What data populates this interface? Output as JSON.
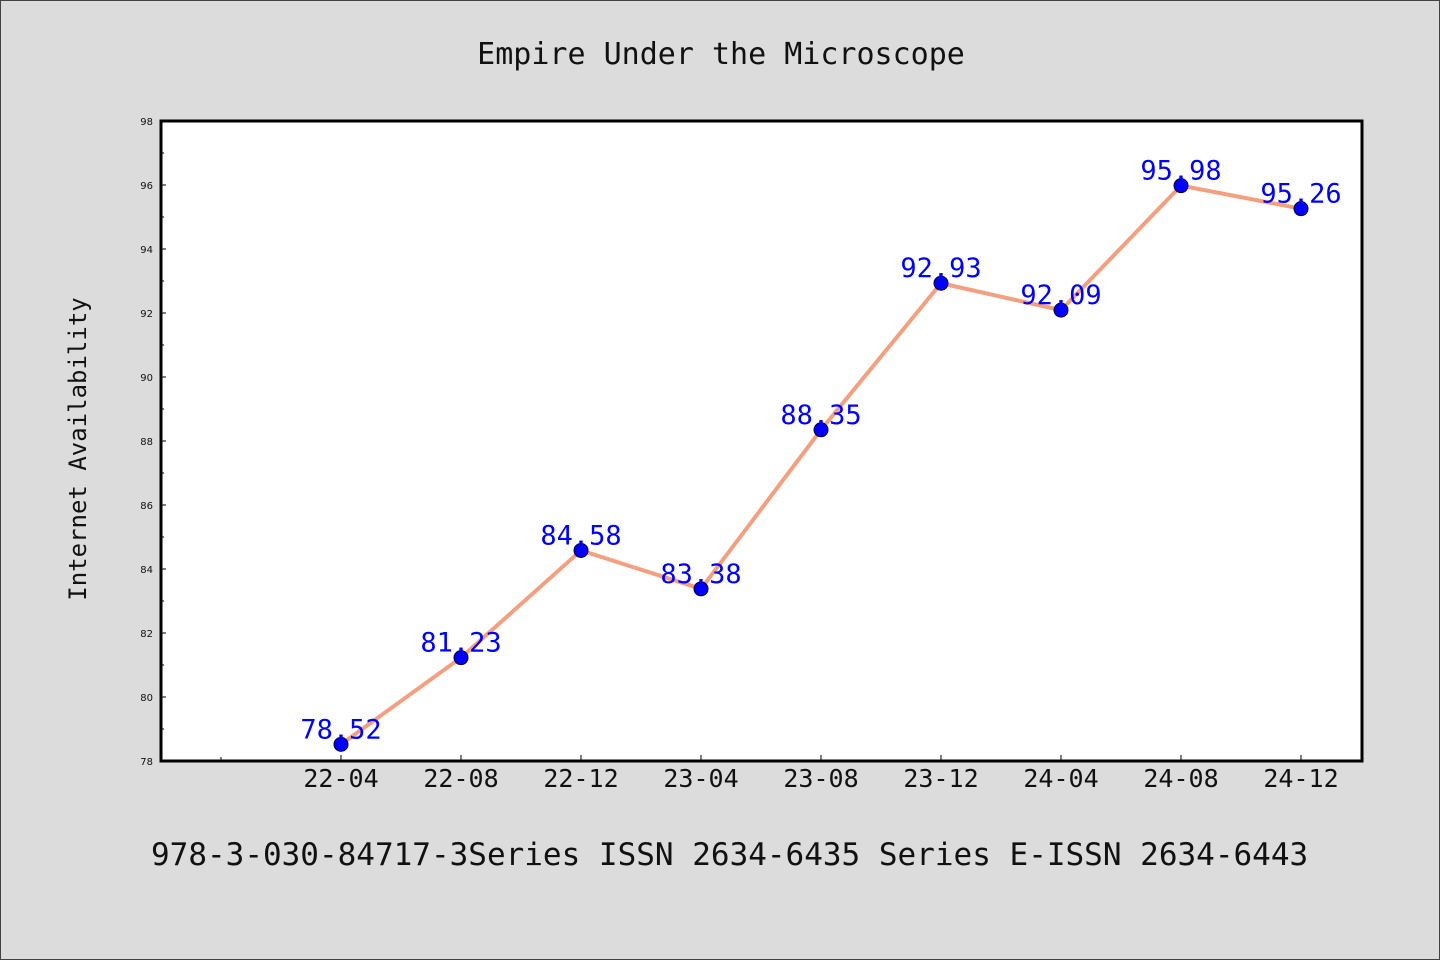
{
  "chart_data": {
    "type": "line",
    "title": "Empire Under the Microscope",
    "xlabel": "",
    "ylabel": "Internet Availability",
    "categories": [
      "22-04",
      "22-08",
      "22-12",
      "23-04",
      "23-08",
      "23-12",
      "24-04",
      "24-08",
      "24-12"
    ],
    "series": [
      {
        "values": [
          78.52,
          81.23,
          84.58,
          83.38,
          88.35,
          92.93,
          92.09,
          95.98,
          95.26
        ]
      }
    ],
    "data_labels": [
      "78.52",
      "81.23",
      "84.58",
      "83.38",
      "88.35",
      "92.93",
      "92.09",
      "95.98",
      "95.26"
    ],
    "ylim": [
      78,
      98
    ],
    "yticks": [
      "78",
      "80",
      "82",
      "84",
      "86",
      "88",
      "90",
      "92",
      "94",
      "96",
      "98"
    ],
    "grid": false,
    "legend": "none",
    "colors": {
      "line": "#f4a080",
      "marker": "#0000ff",
      "data_label": "#0000ff",
      "plot_background": "#ffffff",
      "figure_background": "#dcdcdc"
    }
  },
  "footer": {
    "text": "978-3-030-84717-3Series ISSN 2634-6435 Series E-ISSN 2634-6443"
  }
}
